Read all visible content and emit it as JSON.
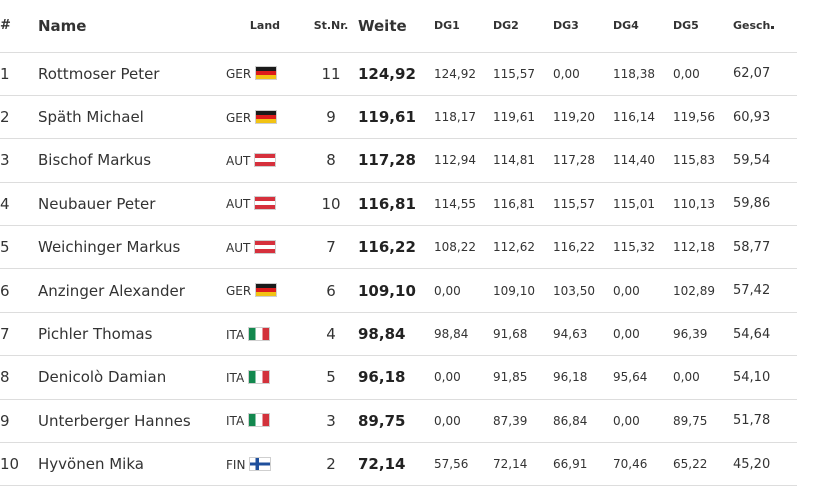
{
  "headers": {
    "rank": "#",
    "name": "Name",
    "land": "Land",
    "stnr": "St.Nr.",
    "weite": "Weite",
    "dg1": "DG1",
    "dg2": "DG2",
    "dg3": "DG3",
    "dg4": "DG4",
    "dg5": "DG5",
    "gesch": "Gesch"
  },
  "rows": [
    {
      "rank": "1",
      "name": "Rottmoser Peter",
      "land": "GER",
      "flag": "ger-flag-icon",
      "stnr": "11",
      "weite": "124,92",
      "dg1": "124,92",
      "dg2": "115,57",
      "dg3": "0,00",
      "dg4": "118,38",
      "dg5": "0,00",
      "gesch": "62,07"
    },
    {
      "rank": "2",
      "name": "Späth Michael",
      "land": "GER",
      "flag": "ger-flag-icon",
      "stnr": "9",
      "weite": "119,61",
      "dg1": "118,17",
      "dg2": "119,61",
      "dg3": "119,20",
      "dg4": "116,14",
      "dg5": "119,56",
      "gesch": "60,93"
    },
    {
      "rank": "3",
      "name": "Bischof Markus",
      "land": "AUT",
      "flag": "aut-flag-icon",
      "stnr": "8",
      "weite": "117,28",
      "dg1": "112,94",
      "dg2": "114,81",
      "dg3": "117,28",
      "dg4": "114,40",
      "dg5": "115,83",
      "gesch": "59,54"
    },
    {
      "rank": "4",
      "name": "Neubauer Peter",
      "land": "AUT",
      "flag": "aut-flag-icon",
      "stnr": "10",
      "weite": "116,81",
      "dg1": "114,55",
      "dg2": "116,81",
      "dg3": "115,57",
      "dg4": "115,01",
      "dg5": "110,13",
      "gesch": "59,86"
    },
    {
      "rank": "5",
      "name": "Weichinger Markus",
      "land": "AUT",
      "flag": "aut-flag-icon",
      "stnr": "7",
      "weite": "116,22",
      "dg1": "108,22",
      "dg2": "112,62",
      "dg3": "116,22",
      "dg4": "115,32",
      "dg5": "112,18",
      "gesch": "58,77"
    },
    {
      "rank": "6",
      "name": "Anzinger Alexander",
      "land": "GER",
      "flag": "ger-flag-icon",
      "stnr": "6",
      "weite": "109,10",
      "dg1": "0,00",
      "dg2": "109,10",
      "dg3": "103,50",
      "dg4": "0,00",
      "dg5": "102,89",
      "gesch": "57,42"
    },
    {
      "rank": "7",
      "name": "Pichler Thomas",
      "land": "ITA",
      "flag": "ita-flag-icon",
      "stnr": "4",
      "weite": "98,84",
      "dg1": "98,84",
      "dg2": "91,68",
      "dg3": "94,63",
      "dg4": "0,00",
      "dg5": "96,39",
      "gesch": "54,64"
    },
    {
      "rank": "8",
      "name": "Denicolò Damian",
      "land": "ITA",
      "flag": "ita-flag-icon",
      "stnr": "5",
      "weite": "96,18",
      "dg1": "0,00",
      "dg2": "91,85",
      "dg3": "96,18",
      "dg4": "95,64",
      "dg5": "0,00",
      "gesch": "54,10"
    },
    {
      "rank": "9",
      "name": "Unterberger Hannes",
      "land": "ITA",
      "flag": "ita-flag-icon",
      "stnr": "3",
      "weite": "89,75",
      "dg1": "0,00",
      "dg2": "87,39",
      "dg3": "86,84",
      "dg4": "0,00",
      "dg5": "89,75",
      "gesch": "51,78"
    },
    {
      "rank": "10",
      "name": "Hyvönen Mika",
      "land": "FIN",
      "flag": "fin-flag-icon",
      "stnr": "2",
      "weite": "72,14",
      "dg1": "57,56",
      "dg2": "72,14",
      "dg3": "66,91",
      "dg4": "70,46",
      "dg5": "65,22",
      "gesch": "45,20"
    }
  ]
}
